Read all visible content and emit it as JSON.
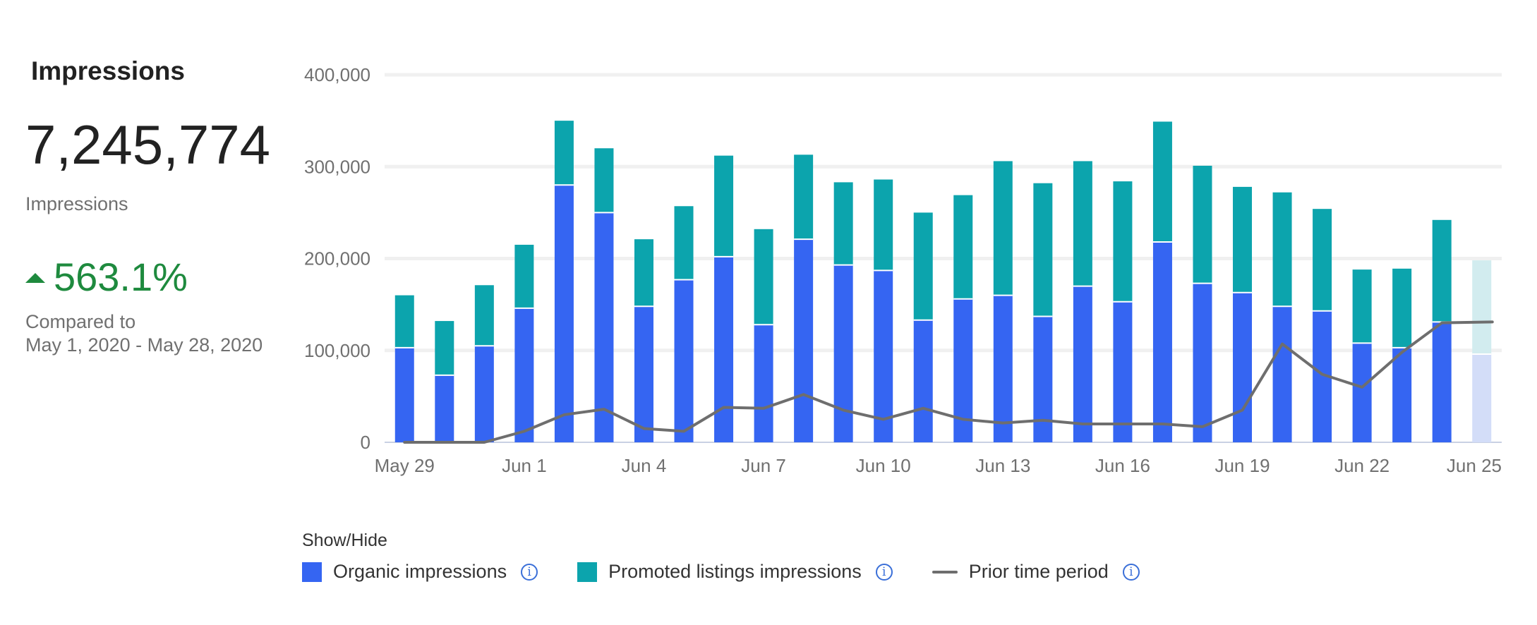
{
  "summary": {
    "title": "Impressions",
    "total": "7,245,774",
    "total_label": "Impressions",
    "change": "563.1%",
    "compare_line1": "Compared to",
    "compare_line2": "May 1, 2020 - May 28, 2020"
  },
  "legend": {
    "title": "Show/Hide",
    "organic": "Organic impressions",
    "promoted": "Promoted listings impressions",
    "prior": "Prior time period"
  },
  "colors": {
    "organic": "#3565f2",
    "promoted": "#0ca4ad",
    "prior": "#6e6e6e",
    "organic_partial": "#d3ddf8",
    "promoted_partial": "#d2ecef",
    "positive": "#1e8a3e"
  },
  "chart_data": {
    "type": "bar",
    "stacked": true,
    "ylim": [
      0,
      400000
    ],
    "yticks": [
      0,
      100000,
      200000,
      300000,
      400000
    ],
    "ytick_labels": [
      "0",
      "100,000",
      "200,000",
      "300,000",
      "400,000"
    ],
    "xtick_labels": [
      "May 29",
      "Jun 1",
      "Jun 4",
      "Jun 7",
      "Jun 10",
      "Jun 13",
      "Jun 16",
      "Jun 19",
      "Jun 22",
      "Jun 25"
    ],
    "xtick_every": 3,
    "categories": [
      "May 29",
      "May 30",
      "May 31",
      "Jun 1",
      "Jun 2",
      "Jun 3",
      "Jun 4",
      "Jun 5",
      "Jun 6",
      "Jun 7",
      "Jun 8",
      "Jun 9",
      "Jun 10",
      "Jun 11",
      "Jun 12",
      "Jun 13",
      "Jun 14",
      "Jun 15",
      "Jun 16",
      "Jun 17",
      "Jun 18",
      "Jun 19",
      "Jun 20",
      "Jun 21",
      "Jun 22",
      "Jun 23",
      "Jun 24",
      "Jun 25"
    ],
    "partial_last": true,
    "series": [
      {
        "name": "Organic impressions",
        "kind": "bar",
        "values": [
          103000,
          73000,
          105000,
          146000,
          280000,
          250000,
          148000,
          177000,
          202000,
          128000,
          221000,
          193000,
          187000,
          133000,
          156000,
          160000,
          137000,
          170000,
          153000,
          218000,
          173000,
          163000,
          148000,
          143000,
          108000,
          103000,
          131000,
          96000
        ]
      },
      {
        "name": "Promoted listings impressions",
        "kind": "bar",
        "values": [
          57000,
          59000,
          66000,
          69000,
          70000,
          70000,
          73000,
          80000,
          110000,
          104000,
          92000,
          90000,
          99000,
          117000,
          113000,
          146000,
          145000,
          136000,
          131000,
          131000,
          128000,
          115000,
          124000,
          111000,
          80000,
          86000,
          111000,
          102000
        ]
      },
      {
        "name": "Prior time period",
        "kind": "line",
        "values": [
          0,
          0,
          0,
          12000,
          30000,
          36000,
          15000,
          12000,
          38000,
          37000,
          52000,
          35000,
          25000,
          37000,
          25000,
          21000,
          24000,
          20000,
          20000,
          20000,
          17000,
          35000,
          107000,
          74000,
          60000,
          98000,
          130000,
          131000
        ]
      }
    ]
  }
}
